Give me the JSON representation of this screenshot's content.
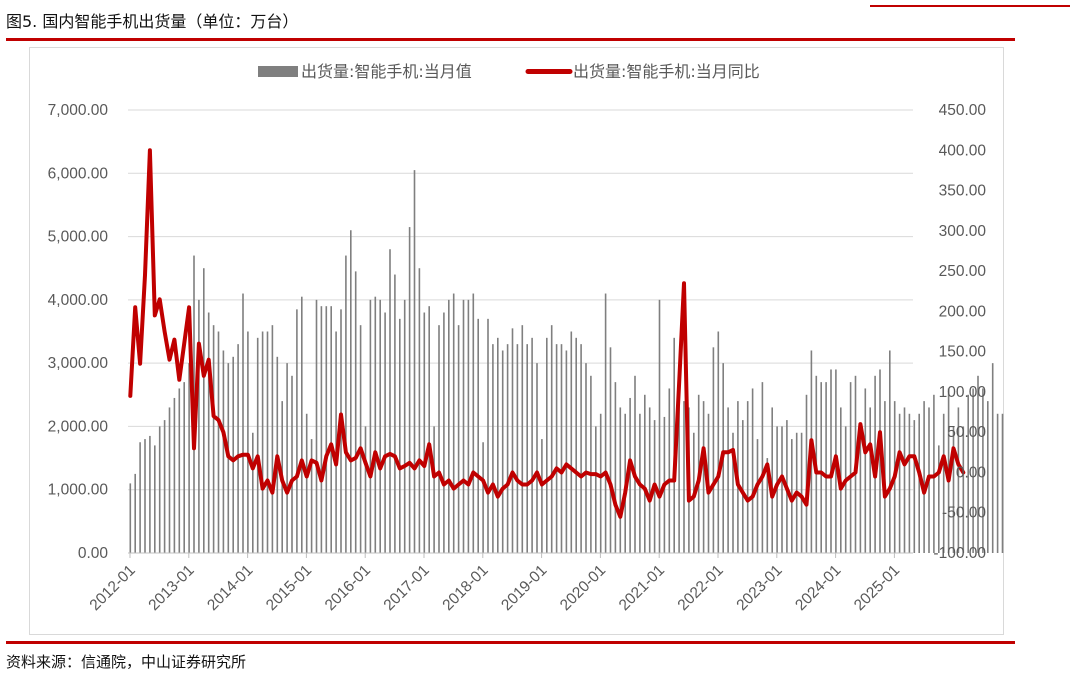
{
  "figure": {
    "title": "图5. 国内智能手机出货量（单位：万台）",
    "source": "资料来源：信通院，中山证券研究所"
  },
  "colors": {
    "bar": "#7f7f7f",
    "line": "#c00000",
    "axis_text": "#595959",
    "gridline": "#d9d9d9",
    "rule": "#c00000"
  },
  "chart_data": {
    "type": "bar+line",
    "x_tick_labels": [
      "2012-01",
      "2013-01",
      "2014-01",
      "2015-01",
      "2016-01",
      "2017-01",
      "2018-01",
      "2019-01",
      "2020-01",
      "2021-01",
      "2022-01",
      "2023-01",
      "2024-01",
      "2025-01"
    ],
    "y_left": {
      "min": 0,
      "max": 7000,
      "step": 1000,
      "tick_labels": [
        "0.00",
        "1,000.00",
        "2,000.00",
        "3,000.00",
        "4,000.00",
        "5,000.00",
        "6,000.00",
        "7,000.00"
      ]
    },
    "y_right": {
      "min": -100,
      "max": 450,
      "step": 50,
      "tick_labels": [
        "-100.00",
        "-50.00",
        "0.00",
        "50.00",
        "100.00",
        "150.00",
        "200.00",
        "250.00",
        "300.00",
        "350.00",
        "400.00",
        "450.00"
      ]
    },
    "grid": "horizontal",
    "legend_position": "top",
    "series": [
      {
        "name": "出货量:智能手机:当月值",
        "type": "bar",
        "axis": "left",
        "start": "2012-01",
        "values": [
          1100,
          1250,
          1750,
          1800,
          1850,
          1700,
          2000,
          2100,
          2300,
          2450,
          2600,
          2700,
          3000,
          4700,
          4000,
          4500,
          3800,
          3600,
          3500,
          3200,
          3000,
          3100,
          3300,
          4100,
          3500,
          1900,
          3400,
          3500,
          3500,
          3600,
          3100,
          2400,
          3000,
          2800,
          3850,
          4050,
          2200,
          1800,
          4000,
          3900,
          3900,
          3900,
          3500,
          3850,
          4700,
          5100,
          4450,
          3600,
          2000,
          4000,
          4050,
          4000,
          3800,
          4800,
          4400,
          3700,
          4000,
          5150,
          6050,
          4500,
          3800,
          3900,
          2000,
          3600,
          3800,
          4000,
          4100,
          3600,
          4000,
          4000,
          4100,
          3700,
          1750,
          3700,
          3300,
          3400,
          3200,
          3300,
          3550,
          3300,
          3600,
          3300,
          3400,
          3000,
          1800,
          3400,
          3600,
          3300,
          3300,
          3200,
          3500,
          3400,
          3300,
          3000,
          2800,
          2000,
          2200,
          4100,
          3250,
          2700,
          2300,
          2200,
          2450,
          2800,
          2200,
          2500,
          2300,
          2100,
          4000,
          2150,
          2600,
          3400,
          2700,
          2400,
          2300,
          1900,
          2500,
          2400,
          2200,
          3250,
          3500,
          3000,
          2300,
          1900,
          2400,
          2100,
          2400,
          2600,
          1800,
          2700,
          1500,
          2300,
          2000,
          2000,
          2100,
          1800,
          1900,
          1900,
          2500,
          3200,
          2800,
          2700,
          2700,
          2900,
          2900,
          2300,
          2000,
          2700,
          2800,
          2000,
          2600,
          2300,
          2800,
          2900,
          2400,
          3200,
          2400,
          2200,
          2300,
          2200,
          2100,
          2200,
          2400,
          2300,
          2500,
          1700,
          2200,
          2600,
          2000,
          2300,
          2000,
          2500,
          2600,
          2800,
          2600,
          2400,
          3000,
          2200,
          2200
        ],
        "note_values_estimated": true
      },
      {
        "name": "出货量:智能手机:当月同比",
        "type": "line",
        "axis": "right",
        "start": "2012-01",
        "values": [
          95,
          205,
          135,
          245,
          400,
          195,
          215,
          175,
          140,
          165,
          115,
          160,
          205,
          30,
          160,
          120,
          140,
          70,
          65,
          50,
          20,
          15,
          20,
          22,
          22,
          5,
          20,
          -20,
          -10,
          -25,
          20,
          -10,
          -25,
          -10,
          -5,
          15,
          -5,
          15,
          12,
          -10,
          20,
          35,
          10,
          72,
          25,
          15,
          18,
          30,
          12,
          -5,
          25,
          5,
          20,
          23,
          20,
          5,
          8,
          12,
          5,
          15,
          8,
          35,
          -5,
          0,
          -15,
          -10,
          -20,
          -15,
          -10,
          -15,
          0,
          -5,
          -10,
          -25,
          -15,
          -30,
          -20,
          -15,
          0,
          -10,
          -15,
          -15,
          -10,
          0,
          -15,
          -10,
          -5,
          5,
          0,
          10,
          5,
          0,
          -5,
          0,
          -2,
          -2,
          -5,
          0,
          -15,
          -40,
          -55,
          -25,
          15,
          -5,
          -15,
          -20,
          -35,
          -15,
          -30,
          -15,
          -10,
          -10,
          110,
          235,
          -35,
          -30,
          -10,
          30,
          -25,
          -15,
          -5,
          25,
          25,
          28,
          -15,
          -25,
          -35,
          -30,
          -15,
          -5,
          10,
          -30,
          -15,
          -5,
          -20,
          -35,
          -25,
          -30,
          -40,
          40,
          0,
          0,
          -5,
          -5,
          20,
          -20,
          -10,
          -5,
          0,
          60,
          25,
          35,
          -5,
          50,
          -30,
          -20,
          -5,
          25,
          10,
          20,
          20,
          0,
          -25,
          -5,
          -5,
          0,
          20,
          -10,
          30,
          10,
          0
        ]
      }
    ]
  }
}
